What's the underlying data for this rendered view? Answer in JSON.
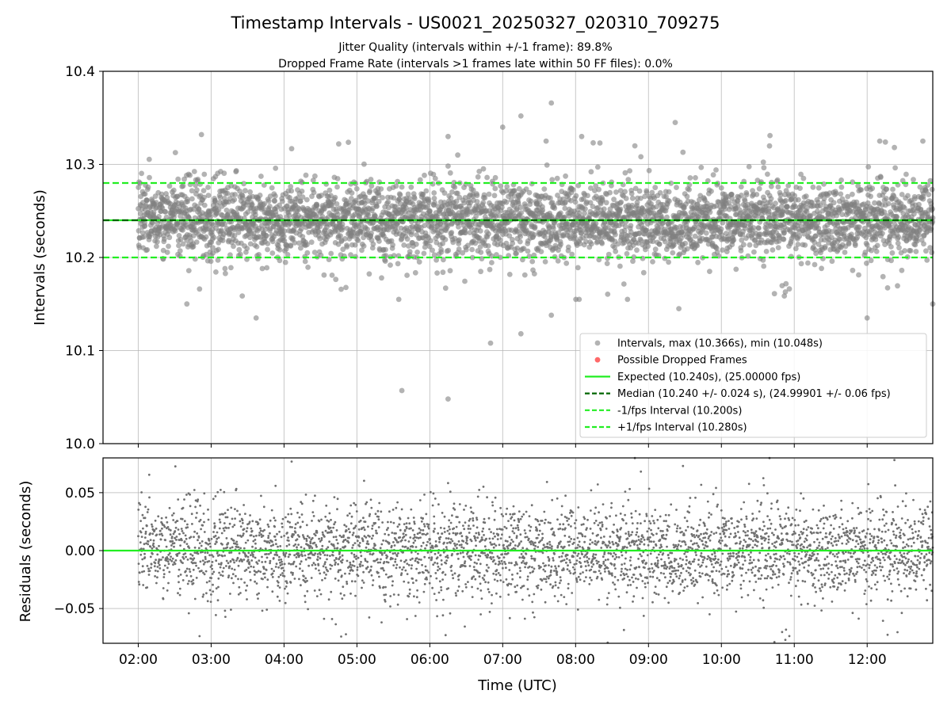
{
  "figure": {
    "title": "Timestamp Intervals - US0021_20250327_020310_709275",
    "subtitle_1": "Jitter Quality (intervals within +/-1 frame): 89.8%",
    "subtitle_2": "Dropped Frame Rate (intervals >1 frames late within 50 FF files): 0.0%"
  },
  "chart_data": [
    {
      "type": "scatter",
      "panel": "intervals",
      "xlabel": "",
      "ylabel": "Intervals (seconds)",
      "xlim": [
        "01:31",
        "12:54"
      ],
      "ylim": [
        10.0,
        10.4
      ],
      "yticks": [
        "10.0",
        "10.1",
        "10.2",
        "10.3",
        "10.4"
      ],
      "grid": true,
      "legend_position": "lower-right",
      "reference_lines": [
        {
          "name": "Expected (10.240s), (25.00000 fps)",
          "y": 10.24,
          "color": "#22ee22",
          "style": "solid"
        },
        {
          "name": "Median (10.240 +/- 0.024 s), (24.99901 +/- 0.06 fps)",
          "y": 10.24,
          "color": "#006400",
          "style": "dashed"
        },
        {
          "name": "-1/fps Interval (10.200s)",
          "y": 10.2,
          "color": "#22ee22",
          "style": "dashed"
        },
        {
          "name": "+1/fps Interval (10.280s)",
          "y": 10.28,
          "color": "#22ee22",
          "style": "dashed"
        }
      ],
      "series": [
        {
          "name": "Intervals, max (10.366s), min (10.048s)",
          "color": "#808080",
          "marker": "circle",
          "alpha": 0.6,
          "x_start": "02:00",
          "x_end": "12:54",
          "approx_count": 3850,
          "center": 10.24,
          "spread_sd": 0.024,
          "max": 10.366,
          "min": 10.048,
          "outliers": [
            {
              "x": "07:40",
              "y": 10.366
            },
            {
              "x": "07:15",
              "y": 10.352
            },
            {
              "x": "09:22",
              "y": 10.345
            },
            {
              "x": "07:00",
              "y": 10.34
            },
            {
              "x": "02:52",
              "y": 10.332
            },
            {
              "x": "10:40",
              "y": 10.331
            },
            {
              "x": "06:15",
              "y": 10.33
            },
            {
              "x": "08:05",
              "y": 10.33
            },
            {
              "x": "12:15",
              "y": 10.324
            },
            {
              "x": "04:45",
              "y": 10.322
            },
            {
              "x": "06:23",
              "y": 10.31
            },
            {
              "x": "08:20",
              "y": 10.323
            },
            {
              "x": "06:50",
              "y": 10.108
            },
            {
              "x": "07:15",
              "y": 10.118
            },
            {
              "x": "03:37",
              "y": 10.135
            },
            {
              "x": "12:00",
              "y": 10.135
            },
            {
              "x": "07:40",
              "y": 10.138
            },
            {
              "x": "02:40",
              "y": 10.15
            },
            {
              "x": "12:54",
              "y": 10.15
            },
            {
              "x": "09:25",
              "y": 10.145
            },
            {
              "x": "05:37",
              "y": 10.057
            },
            {
              "x": "06:15",
              "y": 10.048
            }
          ]
        },
        {
          "name": "Possible Dropped Frames",
          "color": "#ff4444",
          "marker": "circle",
          "count": 0
        }
      ]
    },
    {
      "type": "scatter",
      "panel": "residuals",
      "xlabel": "Time (UTC)",
      "ylabel": "Residuals (seconds)",
      "xlim": [
        "01:31",
        "12:54"
      ],
      "ylim": [
        -0.08,
        0.08
      ],
      "xticks": [
        "02:00",
        "03:00",
        "04:00",
        "05:00",
        "06:00",
        "07:00",
        "08:00",
        "09:00",
        "10:00",
        "11:00",
        "12:00"
      ],
      "yticks": [
        "−0.05",
        "0.00",
        "0.05"
      ],
      "grid": true,
      "reference_lines": [
        {
          "name": "zero",
          "y": 0.0,
          "color": "#22ee22",
          "style": "solid"
        }
      ],
      "series": [
        {
          "name": "",
          "color": "#707070",
          "marker": "dot",
          "x_start": "02:00",
          "x_end": "12:54",
          "approx_count": 3850,
          "spread_sd": 0.024
        }
      ]
    }
  ]
}
